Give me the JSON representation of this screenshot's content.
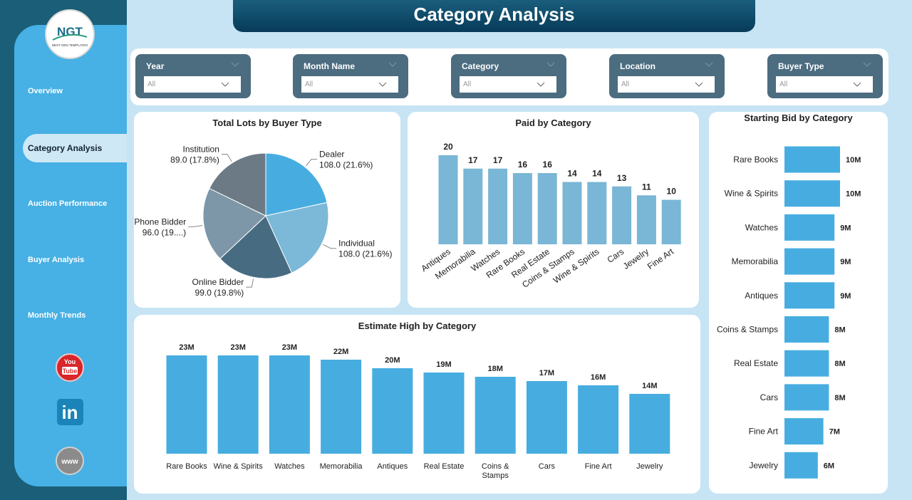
{
  "header": {
    "title": "Category Analysis"
  },
  "logo": {
    "name": "NGT",
    "tagline": "NEXT GEN TEMPLATES"
  },
  "nav": [
    "Overview",
    "Category Analysis",
    "Auction Performance",
    "Buyer Analysis",
    "Monthly Trends"
  ],
  "social": {
    "youtube_top": "You",
    "youtube_bottom": "Tube",
    "linkedin": "in",
    "web": "www"
  },
  "filters": [
    {
      "label": "Year",
      "value": "All"
    },
    {
      "label": "Month Name",
      "value": "All"
    },
    {
      "label": "Category",
      "value": "All"
    },
    {
      "label": "Location",
      "value": "All"
    },
    {
      "label": "Buyer Type",
      "value": "All"
    }
  ],
  "chart_data": [
    {
      "type": "pie",
      "title": "Total Lots by Buyer Type",
      "categories": [
        "Dealer",
        "Individual",
        "Online Bidder",
        "Phone Bidder",
        "Institution"
      ],
      "values": [
        108,
        108,
        99,
        96,
        89
      ],
      "value_labels": [
        "108.0 (21.6%)",
        "108.0 (21.6%)",
        "99.0 (19.8%)",
        "96.0 (19....)",
        "89.0 (17.8%)"
      ],
      "colors": [
        "#47ade0",
        "#7cb8d8",
        "#476c82",
        "#7d97a8",
        "#6b7a84"
      ]
    },
    {
      "type": "bar",
      "orientation": "vertical",
      "title": "Paid by Category",
      "categories": [
        "Antiques",
        "Memorabilia",
        "Watches",
        "Rare Books",
        "Real Estate",
        "Coins & Stamps",
        "Wine & Spirits",
        "Cars",
        "Jewelry",
        "Fine Art"
      ],
      "values": [
        20,
        17,
        17,
        16,
        16,
        14,
        14,
        13,
        11,
        10
      ],
      "color": "#7ab6d5"
    },
    {
      "type": "bar",
      "orientation": "vertical",
      "title": "Estimate High by Category",
      "categories": [
        "Rare Books",
        "Wine & Spirits",
        "Watches",
        "Memorabilia",
        "Antiques",
        "Real Estate",
        "Coins & Stamps",
        "Cars",
        "Fine Art",
        "Jewelry"
      ],
      "values": [
        23,
        23,
        23,
        22,
        20,
        19,
        18,
        17,
        16,
        14
      ],
      "value_labels": [
        "23M",
        "23M",
        "23M",
        "22M",
        "20M",
        "19M",
        "18M",
        "17M",
        "16M",
        "14M"
      ],
      "color": "#47ade0"
    },
    {
      "type": "bar",
      "orientation": "horizontal",
      "title": "Starting Bid by Category",
      "categories": [
        "Rare Books",
        "Wine & Spirits",
        "Watches",
        "Memorabilia",
        "Antiques",
        "Coins & Stamps",
        "Real Estate",
        "Cars",
        "Fine Art",
        "Jewelry"
      ],
      "values": [
        10,
        10,
        9,
        9,
        9,
        8,
        8,
        8,
        7,
        6
      ],
      "value_labels": [
        "10M",
        "10M",
        "9M",
        "9M",
        "9M",
        "8M",
        "8M",
        "8M",
        "7M",
        "6M"
      ],
      "color": "#47ade0"
    }
  ]
}
